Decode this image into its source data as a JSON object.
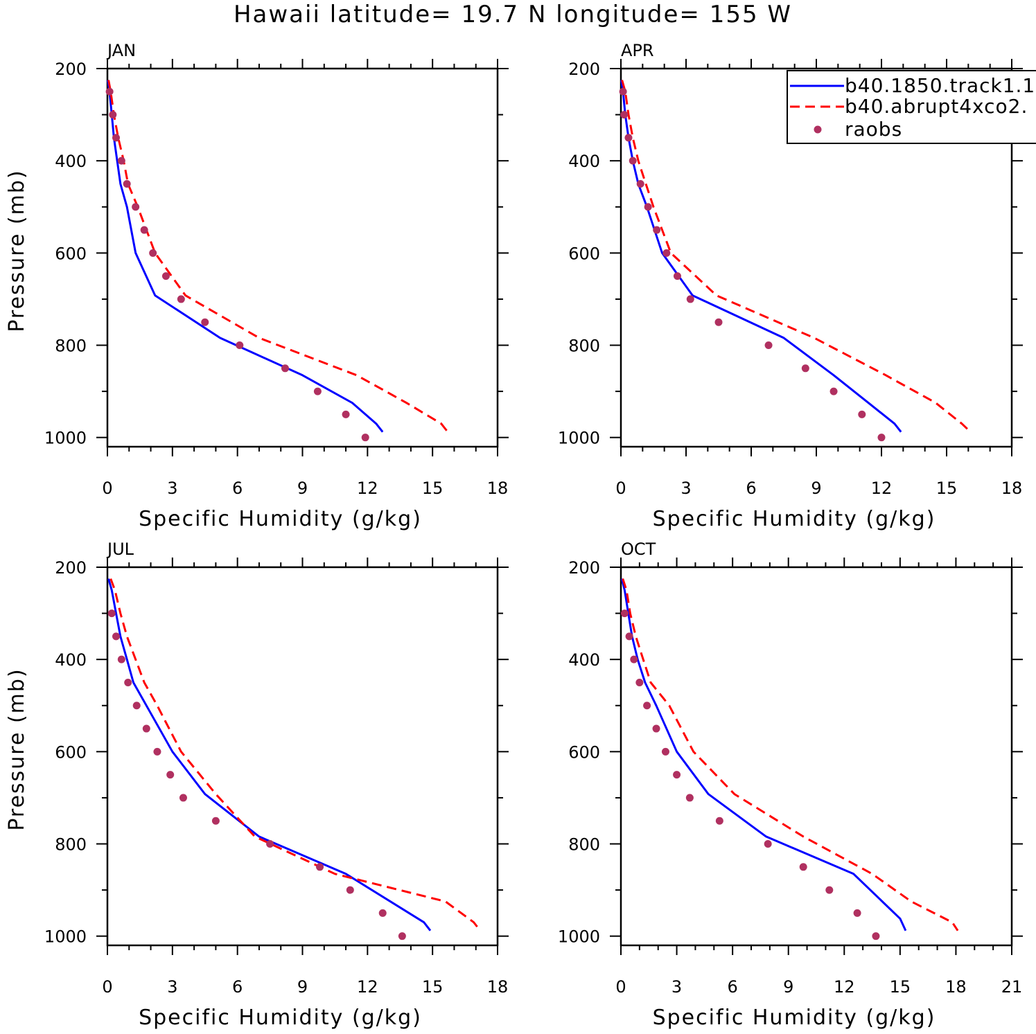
{
  "figure": {
    "title": "Hawaii  latitude= 19.7 N longitude= 155 W"
  },
  "legend": {
    "entries": [
      {
        "label": "b40.1850.track1.1",
        "style": "solid",
        "color": "#0000ff"
      },
      {
        "label": "b40.abrupt4xco2.",
        "style": "dashed",
        "color": "#ff0000"
      },
      {
        "label": "raobs",
        "style": "dot",
        "color": "#b03060"
      }
    ]
  },
  "chart_data": [
    {
      "type": "line",
      "panel": "JAN",
      "xlabel": "Specific Humidity (g/kg)",
      "ylabel": "Pressure (mb)",
      "xlim": [
        0,
        18
      ],
      "xticks": [
        0,
        3,
        6,
        9,
        12,
        15,
        18
      ],
      "ylim": [
        200,
        1000
      ],
      "yticks": [
        200,
        400,
        600,
        800,
        1000
      ],
      "series": [
        {
          "name": "b40.1850.track1.1",
          "points": [
            [
              0.02,
              225
            ],
            [
              0.1,
              250
            ],
            [
              0.2,
              300
            ],
            [
              0.3,
              350
            ],
            [
              0.45,
              400
            ],
            [
              0.6,
              450
            ],
            [
              0.9,
              500
            ],
            [
              1.3,
              600
            ],
            [
              2.2,
              692
            ],
            [
              5.2,
              784
            ],
            [
              9.0,
              865
            ],
            [
              11.3,
              925
            ],
            [
              12.4,
              970
            ],
            [
              12.7,
              988
            ]
          ]
        },
        {
          "name": "b40.abrupt4xco2.",
          "points": [
            [
              0.05,
              225
            ],
            [
              0.15,
              250
            ],
            [
              0.3,
              300
            ],
            [
              0.5,
              350
            ],
            [
              0.75,
              400
            ],
            [
              0.95,
              450
            ],
            [
              1.4,
              500
            ],
            [
              2.2,
              600
            ],
            [
              3.6,
              692
            ],
            [
              7.0,
              784
            ],
            [
              11.5,
              865
            ],
            [
              13.8,
              925
            ],
            [
              15.4,
              970
            ],
            [
              15.7,
              988
            ]
          ]
        },
        {
          "name": "raobs",
          "points": [
            [
              0.1,
              250
            ],
            [
              0.25,
              300
            ],
            [
              0.4,
              350
            ],
            [
              0.65,
              400
            ],
            [
              0.9,
              450
            ],
            [
              1.3,
              500
            ],
            [
              1.7,
              550
            ],
            [
              2.1,
              600
            ],
            [
              2.7,
              650
            ],
            [
              3.4,
              700
            ],
            [
              4.5,
              750
            ],
            [
              6.1,
              800
            ],
            [
              8.2,
              850
            ],
            [
              9.7,
              900
            ],
            [
              11.0,
              950
            ],
            [
              11.9,
              1000
            ]
          ]
        }
      ]
    },
    {
      "type": "line",
      "panel": "APR",
      "xlabel": "Specific Humidity (g/kg)",
      "ylabel": "",
      "xlim": [
        0,
        18
      ],
      "xticks": [
        0,
        3,
        6,
        9,
        12,
        15,
        18
      ],
      "ylim": [
        200,
        1000
      ],
      "yticks": [
        200,
        400,
        600,
        800,
        1000
      ],
      "series": [
        {
          "name": "b40.1850.track1.1",
          "points": [
            [
              0.02,
              225
            ],
            [
              0.1,
              250
            ],
            [
              0.2,
              300
            ],
            [
              0.35,
              350
            ],
            [
              0.55,
              400
            ],
            [
              0.8,
              450
            ],
            [
              1.2,
              500
            ],
            [
              1.9,
              600
            ],
            [
              3.3,
              692
            ],
            [
              7.5,
              784
            ],
            [
              9.8,
              865
            ],
            [
              11.4,
              925
            ],
            [
              12.6,
              970
            ],
            [
              12.9,
              988
            ]
          ]
        },
        {
          "name": "b40.abrupt4xco2.",
          "points": [
            [
              0.05,
              225
            ],
            [
              0.2,
              250
            ],
            [
              0.35,
              300
            ],
            [
              0.55,
              350
            ],
            [
              0.8,
              400
            ],
            [
              1.15,
              450
            ],
            [
              1.5,
              500
            ],
            [
              2.3,
              600
            ],
            [
              4.4,
              692
            ],
            [
              8.9,
              784
            ],
            [
              12.2,
              865
            ],
            [
              14.5,
              925
            ],
            [
              15.7,
              970
            ],
            [
              16.1,
              988
            ]
          ]
        },
        {
          "name": "raobs",
          "points": [
            [
              0.1,
              250
            ],
            [
              0.15,
              300
            ],
            [
              0.35,
              350
            ],
            [
              0.55,
              400
            ],
            [
              0.9,
              450
            ],
            [
              1.25,
              500
            ],
            [
              1.65,
              550
            ],
            [
              2.1,
              600
            ],
            [
              2.6,
              650
            ],
            [
              3.2,
              700
            ],
            [
              4.5,
              750
            ],
            [
              6.8,
              800
            ],
            [
              8.5,
              850
            ],
            [
              9.8,
              900
            ],
            [
              11.1,
              950
            ],
            [
              12.0,
              1000
            ]
          ]
        }
      ]
    },
    {
      "type": "line",
      "panel": "JUL",
      "xlabel": "Specific Humidity (g/kg)",
      "ylabel": "Pressure (mb)",
      "xlim": [
        0,
        18
      ],
      "xticks": [
        0,
        3,
        6,
        9,
        12,
        15,
        18
      ],
      "ylim": [
        200,
        1000
      ],
      "yticks": [
        200,
        400,
        600,
        800,
        1000
      ],
      "series": [
        {
          "name": "b40.1850.track1.1",
          "points": [
            [
              0.05,
              225
            ],
            [
              0.2,
              250
            ],
            [
              0.4,
              300
            ],
            [
              0.6,
              350
            ],
            [
              0.9,
              400
            ],
            [
              1.2,
              450
            ],
            [
              1.8,
              500
            ],
            [
              3.0,
              600
            ],
            [
              4.5,
              692
            ],
            [
              7.0,
              784
            ],
            [
              11.0,
              865
            ],
            [
              14.6,
              970
            ],
            [
              14.9,
              988
            ]
          ]
        },
        {
          "name": "b40.abrupt4xco2.",
          "points": [
            [
              0.15,
              225
            ],
            [
              0.35,
              250
            ],
            [
              0.6,
              300
            ],
            [
              0.9,
              350
            ],
            [
              1.3,
              400
            ],
            [
              1.7,
              450
            ],
            [
              2.3,
              500
            ],
            [
              3.4,
              600
            ],
            [
              5.0,
              692
            ],
            [
              6.8,
              784
            ],
            [
              10.5,
              865
            ],
            [
              15.6,
              925
            ],
            [
              16.9,
              970
            ],
            [
              17.2,
              988
            ]
          ]
        },
        {
          "name": "raobs",
          "points": [
            [
              0.2,
              300
            ],
            [
              0.4,
              350
            ],
            [
              0.65,
              400
            ],
            [
              0.95,
              450
            ],
            [
              1.35,
              500
            ],
            [
              1.8,
              550
            ],
            [
              2.3,
              600
            ],
            [
              2.9,
              650
            ],
            [
              3.5,
              700
            ],
            [
              5.0,
              750
            ],
            [
              7.5,
              800
            ],
            [
              9.8,
              850
            ],
            [
              11.2,
              900
            ],
            [
              12.7,
              950
            ],
            [
              13.6,
              1000
            ]
          ]
        }
      ]
    },
    {
      "type": "line",
      "panel": "OCT",
      "xlabel": "Specific Humidity (g/kg)",
      "ylabel": "",
      "xlim": [
        0,
        21
      ],
      "xticks": [
        0,
        3,
        6,
        9,
        12,
        15,
        18,
        21
      ],
      "ylim": [
        200,
        1000
      ],
      "yticks": [
        200,
        400,
        600,
        800,
        1000
      ],
      "series": [
        {
          "name": "b40.1850.track1.1",
          "points": [
            [
              0.05,
              225
            ],
            [
              0.2,
              250
            ],
            [
              0.4,
              300
            ],
            [
              0.6,
              350
            ],
            [
              0.9,
              400
            ],
            [
              1.3,
              450
            ],
            [
              1.9,
              500
            ],
            [
              3.0,
              600
            ],
            [
              4.7,
              692
            ],
            [
              7.8,
              784
            ],
            [
              12.5,
              865
            ],
            [
              15.0,
              962
            ],
            [
              15.3,
              988
            ]
          ]
        },
        {
          "name": "b40.abrupt4xco2.",
          "points": [
            [
              0.1,
              225
            ],
            [
              0.3,
              250
            ],
            [
              0.5,
              300
            ],
            [
              0.8,
              350
            ],
            [
              1.2,
              400
            ],
            [
              1.6,
              450
            ],
            [
              2.6,
              500
            ],
            [
              3.9,
              600
            ],
            [
              6.1,
              692
            ],
            [
              9.8,
              784
            ],
            [
              13.5,
              865
            ],
            [
              15.6,
              925
            ],
            [
              17.8,
              970
            ],
            [
              18.1,
              988
            ]
          ]
        },
        {
          "name": "raobs",
          "points": [
            [
              0.2,
              300
            ],
            [
              0.45,
              350
            ],
            [
              0.7,
              400
            ],
            [
              1.0,
              450
            ],
            [
              1.4,
              500
            ],
            [
              1.9,
              550
            ],
            [
              2.4,
              600
            ],
            [
              3.0,
              650
            ],
            [
              3.7,
              700
            ],
            [
              5.3,
              750
            ],
            [
              7.9,
              800
            ],
            [
              9.8,
              850
            ],
            [
              11.2,
              900
            ],
            [
              12.7,
              950
            ],
            [
              13.7,
              1000
            ]
          ]
        }
      ]
    }
  ]
}
